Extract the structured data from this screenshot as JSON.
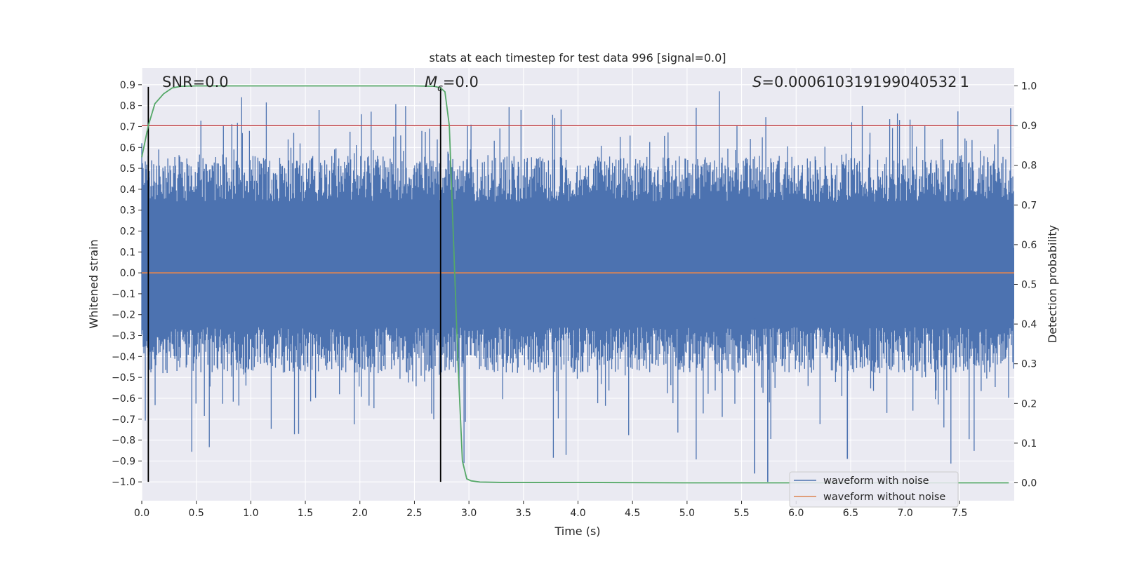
{
  "chart_data": {
    "type": "line",
    "title": "stats at each timestep for test data 996 [signal=0.0]",
    "xlabel": "Time (s)",
    "ylabel": "Whitened strain",
    "y2label": "Detection probability",
    "xlim": [
      0.0,
      8.0
    ],
    "ylim": [
      -1.09,
      0.98
    ],
    "y2lim": [
      -0.045,
      1.045
    ],
    "x_ticks": [
      0.0,
      0.5,
      1.0,
      1.5,
      2.0,
      2.5,
      3.0,
      3.5,
      4.0,
      4.5,
      5.0,
      5.5,
      6.0,
      6.5,
      7.0,
      7.5
    ],
    "x_tick_labels": [
      "0.0",
      "0.5",
      "1.0",
      "1.5",
      "2.0",
      "2.5",
      "3.0",
      "3.5",
      "4.0",
      "4.5",
      "5.0",
      "5.5",
      "6.0",
      "6.5",
      "7.0",
      "7.5"
    ],
    "y_ticks": [
      0.9,
      0.8,
      0.7,
      0.6,
      0.5,
      0.4,
      0.3,
      0.2,
      0.1,
      0.0,
      -0.1,
      -0.2,
      -0.3,
      -0.4,
      -0.5,
      -0.6,
      -0.7,
      -0.8,
      -0.9,
      -1.0
    ],
    "y_tick_labels": [
      "0.9",
      "0.8",
      "0.7",
      "0.6",
      "0.5",
      "0.4",
      "0.3",
      "0.2",
      "0.1",
      "0.0",
      "−0.1",
      "−0.2",
      "−0.3",
      "−0.4",
      "−0.5",
      "−0.6",
      "−0.7",
      "−0.8",
      "−0.9",
      "−1.0"
    ],
    "y2_ticks": [
      1.0,
      0.9,
      0.8,
      0.7,
      0.6,
      0.5,
      0.4,
      0.3,
      0.2,
      0.1,
      0.0
    ],
    "y2_tick_labels": [
      "1.0",
      "0.9",
      "0.8",
      "0.7",
      "0.6",
      "0.5",
      "0.4",
      "0.3",
      "0.2",
      "0.1",
      "0.0"
    ],
    "grid": true,
    "legend_placement": "lower-right",
    "annotations": {
      "snr": "SNR=0.0",
      "mc_symbol": "M",
      "mc_subscript": "c",
      "mc_value": "=0.0",
      "s_symbol": "S",
      "s_value": "=0.000610319199040532 1"
    },
    "series": [
      {
        "name": "waveform with noise",
        "color": "#4c72b0",
        "description_values": "dense noise trace, x from 0.0 to 8.0 s, whitened strain roughly between -1.0 and 0.89",
        "x_range": [
          0.0,
          8.0
        ],
        "y_core_range": [
          -0.32,
          0.4
        ],
        "y_extreme_range": [
          -1.0,
          0.89
        ]
      },
      {
        "name": "waveform without noise",
        "color": "#dd8452",
        "x": [
          0.0,
          8.0
        ],
        "y": [
          0.0,
          0.0
        ]
      },
      {
        "name": "detection probability",
        "color": "#55a868",
        "axis": "right",
        "x": [
          0.0,
          0.06,
          0.12,
          0.2,
          0.28,
          0.36,
          0.5,
          1.0,
          2.0,
          2.5,
          2.68,
          2.74,
          2.78,
          2.82,
          2.86,
          2.9,
          2.94,
          2.98,
          3.02,
          3.1,
          3.3,
          4.0,
          5.0,
          6.0,
          7.0,
          7.95
        ],
        "y": [
          0.82,
          0.9,
          0.955,
          0.98,
          0.995,
          0.999,
          1.0,
          1.0,
          1.0,
          1.0,
          0.999,
          0.995,
          0.985,
          0.9,
          0.6,
          0.3,
          0.055,
          0.01,
          0.005,
          0.002,
          0.001,
          0.001,
          0.0,
          0.0,
          0.0,
          0.0
        ]
      }
    ],
    "reference_lines": {
      "threshold_y2": 0.9,
      "threshold_color": "#c44e52",
      "vertical_x": [
        0.06,
        2.74
      ],
      "vertical_color": "#000000",
      "vertical_y_range": [
        -1.0,
        0.89
      ]
    }
  },
  "legend": {
    "items": [
      {
        "label": "waveform with noise",
        "color": "#4c72b0"
      },
      {
        "label": "waveform without noise",
        "color": "#dd8452"
      }
    ]
  },
  "colors": {
    "plot_background": "#eaeaf2",
    "grid": "#ffffff",
    "text": "#262626"
  }
}
